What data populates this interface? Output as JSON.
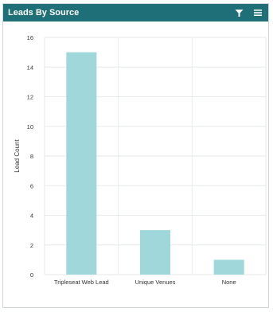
{
  "widget": {
    "title": "Leads By Source",
    "filter_icon": "filter-icon",
    "menu_icon": "menu-icon"
  },
  "colors": {
    "header_bg": "#1f6f78",
    "bar": "#9fd7da",
    "grid": "#e6eaea",
    "text": "#333333"
  },
  "chart_data": {
    "type": "bar",
    "categories": [
      "Tripleseat Web Lead",
      "Unique Venues",
      "None"
    ],
    "values": [
      15,
      3,
      1
    ],
    "title": "",
    "xlabel": "",
    "ylabel": "Lead Count",
    "ylim": [
      0,
      16
    ],
    "yticks": [
      0,
      2,
      4,
      6,
      8,
      10,
      12,
      14,
      16
    ],
    "grid": true,
    "legend": "none"
  }
}
